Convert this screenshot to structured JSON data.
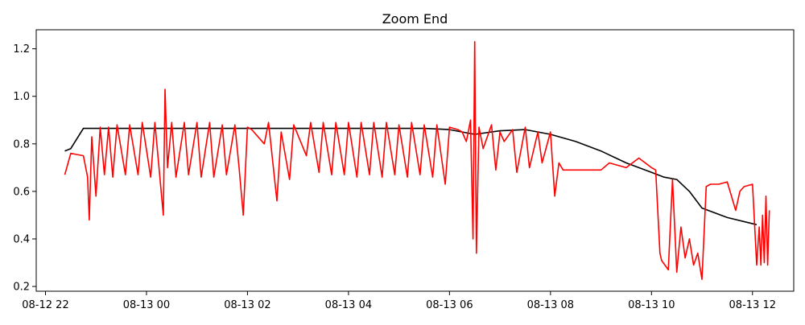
{
  "chart_data": {
    "type": "line",
    "title": "Zoom End",
    "xlabel": "",
    "ylabel": "",
    "x_ticks": [
      "08-12 22",
      "08-13 00",
      "08-13 02",
      "08-13 04",
      "08-13 06",
      "08-13 08",
      "08-13 10",
      "08-13 12"
    ],
    "x_tick_values": [
      "2023-08-12T22:00",
      "2023-08-13T00:00",
      "2023-08-13T02:00",
      "2023-08-13T04:00",
      "2023-08-13T06:00",
      "2023-08-13T08:00",
      "2023-08-13T10:00",
      "2023-08-13T12:00"
    ],
    "xlim": [
      "2023-08-12T21:49",
      "2023-08-13T12:49"
    ],
    "y_ticks": [
      "0.2",
      "0.4",
      "0.6",
      "0.8",
      "1.0",
      "1.2"
    ],
    "y_tick_values": [
      0.2,
      0.4,
      0.6,
      0.8,
      1.0,
      1.2
    ],
    "ylim": [
      0.18,
      1.28
    ],
    "grid": false,
    "series": [
      {
        "color": "#000000",
        "x": [
          "2023-08-12T22:23",
          "2023-08-12T22:30",
          "2023-08-12T22:45",
          "2023-08-13T00:00",
          "2023-08-13T02:00",
          "2023-08-13T04:00",
          "2023-08-13T05:30",
          "2023-08-13T06:00",
          "2023-08-13T06:30",
          "2023-08-13T07:00",
          "2023-08-13T07:30",
          "2023-08-13T08:00",
          "2023-08-13T08:30",
          "2023-08-13T09:00",
          "2023-08-13T09:30",
          "2023-08-13T10:00",
          "2023-08-13T10:15",
          "2023-08-13T10:30",
          "2023-08-13T10:45",
          "2023-08-13T11:00",
          "2023-08-13T11:30",
          "2023-08-13T12:05"
        ],
        "y": [
          0.77,
          0.78,
          0.865,
          0.865,
          0.865,
          0.865,
          0.865,
          0.86,
          0.84,
          0.855,
          0.86,
          0.84,
          0.81,
          0.77,
          0.72,
          0.68,
          0.66,
          0.65,
          0.6,
          0.53,
          0.49,
          0.46
        ]
      },
      {
        "color": "#ff0000",
        "x": [
          "2023-08-12T22:23",
          "2023-08-12T22:30",
          "2023-08-12T22:45",
          "2023-08-12T22:50",
          "2023-08-12T22:52",
          "2023-08-12T22:55",
          "2023-08-12T23:00",
          "2023-08-12T23:05",
          "2023-08-12T23:10",
          "2023-08-12T23:15",
          "2023-08-12T23:20",
          "2023-08-12T23:25",
          "2023-08-12T23:35",
          "2023-08-12T23:40",
          "2023-08-12T23:50",
          "2023-08-12T23:55",
          "2023-08-13T00:05",
          "2023-08-13T00:10",
          "2023-08-13T00:20",
          "2023-08-13T00:22",
          "2023-08-13T00:25",
          "2023-08-13T00:30",
          "2023-08-13T00:35",
          "2023-08-13T00:45",
          "2023-08-13T00:50",
          "2023-08-13T01:00",
          "2023-08-13T01:05",
          "2023-08-13T01:15",
          "2023-08-13T01:20",
          "2023-08-13T01:30",
          "2023-08-13T01:35",
          "2023-08-13T01:45",
          "2023-08-13T01:50",
          "2023-08-13T01:55",
          "2023-08-13T02:00",
          "2023-08-13T02:05",
          "2023-08-13T02:20",
          "2023-08-13T02:25",
          "2023-08-13T02:35",
          "2023-08-13T02:40",
          "2023-08-13T02:50",
          "2023-08-13T02:55",
          "2023-08-13T03:10",
          "2023-08-13T03:15",
          "2023-08-13T03:25",
          "2023-08-13T03:30",
          "2023-08-13T03:40",
          "2023-08-13T03:45",
          "2023-08-13T03:55",
          "2023-08-13T04:00",
          "2023-08-13T04:10",
          "2023-08-13T04:15",
          "2023-08-13T04:25",
          "2023-08-13T04:30",
          "2023-08-13T04:40",
          "2023-08-13T04:45",
          "2023-08-13T04:55",
          "2023-08-13T05:00",
          "2023-08-13T05:10",
          "2023-08-13T05:15",
          "2023-08-13T05:25",
          "2023-08-13T05:30",
          "2023-08-13T05:40",
          "2023-08-13T05:45",
          "2023-08-13T05:55",
          "2023-08-13T06:00",
          "2023-08-13T06:10",
          "2023-08-13T06:15",
          "2023-08-13T06:20",
          "2023-08-13T06:25",
          "2023-08-13T06:28",
          "2023-08-13T06:30",
          "2023-08-13T06:32",
          "2023-08-13T06:35",
          "2023-08-13T06:40",
          "2023-08-13T06:50",
          "2023-08-13T06:55",
          "2023-08-13T07:00",
          "2023-08-13T07:05",
          "2023-08-13T07:15",
          "2023-08-13T07:20",
          "2023-08-13T07:30",
          "2023-08-13T07:35",
          "2023-08-13T07:45",
          "2023-08-13T07:50",
          "2023-08-13T08:00",
          "2023-08-13T08:05",
          "2023-08-13T08:10",
          "2023-08-13T08:15",
          "2023-08-13T08:30",
          "2023-08-13T09:00",
          "2023-08-13T09:10",
          "2023-08-13T09:30",
          "2023-08-13T09:45",
          "2023-08-13T10:00",
          "2023-08-13T10:05",
          "2023-08-13T10:10",
          "2023-08-13T10:12",
          "2023-08-13T10:20",
          "2023-08-13T10:25",
          "2023-08-13T10:30",
          "2023-08-13T10:35",
          "2023-08-13T10:40",
          "2023-08-13T10:45",
          "2023-08-13T10:50",
          "2023-08-13T10:55",
          "2023-08-13T11:00",
          "2023-08-13T11:05",
          "2023-08-13T11:10",
          "2023-08-13T11:20",
          "2023-08-13T11:30",
          "2023-08-13T11:40",
          "2023-08-13T11:45",
          "2023-08-13T11:50",
          "2023-08-13T12:00",
          "2023-08-13T12:05",
          "2023-08-13T12:08",
          "2023-08-13T12:10",
          "2023-08-13T12:12",
          "2023-08-13T12:14",
          "2023-08-13T12:16",
          "2023-08-13T12:18",
          "2023-08-13T12:20"
        ],
        "y": [
          0.67,
          0.76,
          0.75,
          0.66,
          0.48,
          0.83,
          0.58,
          0.87,
          0.67,
          0.87,
          0.66,
          0.88,
          0.67,
          0.88,
          0.67,
          0.89,
          0.66,
          0.89,
          0.5,
          1.03,
          0.7,
          0.89,
          0.66,
          0.89,
          0.67,
          0.89,
          0.66,
          0.89,
          0.66,
          0.88,
          0.67,
          0.88,
          0.7,
          0.5,
          0.87,
          0.86,
          0.8,
          0.89,
          0.56,
          0.85,
          0.65,
          0.88,
          0.75,
          0.89,
          0.68,
          0.89,
          0.67,
          0.89,
          0.67,
          0.89,
          0.66,
          0.89,
          0.67,
          0.89,
          0.66,
          0.89,
          0.67,
          0.88,
          0.66,
          0.89,
          0.67,
          0.88,
          0.66,
          0.88,
          0.63,
          0.87,
          0.86,
          0.85,
          0.81,
          0.9,
          0.4,
          1.23,
          0.34,
          0.87,
          0.78,
          0.88,
          0.69,
          0.85,
          0.81,
          0.86,
          0.68,
          0.87,
          0.7,
          0.85,
          0.72,
          0.85,
          0.58,
          0.72,
          0.69,
          0.69,
          0.69,
          0.72,
          0.7,
          0.74,
          0.7,
          0.69,
          0.34,
          0.31,
          0.27,
          0.65,
          0.26,
          0.45,
          0.32,
          0.4,
          0.29,
          0.34,
          0.23,
          0.62,
          0.63,
          0.63,
          0.64,
          0.52,
          0.6,
          0.62,
          0.63,
          0.29,
          0.45,
          0.29,
          0.5,
          0.3,
          0.58,
          0.29,
          0.52
        ]
      }
    ]
  }
}
